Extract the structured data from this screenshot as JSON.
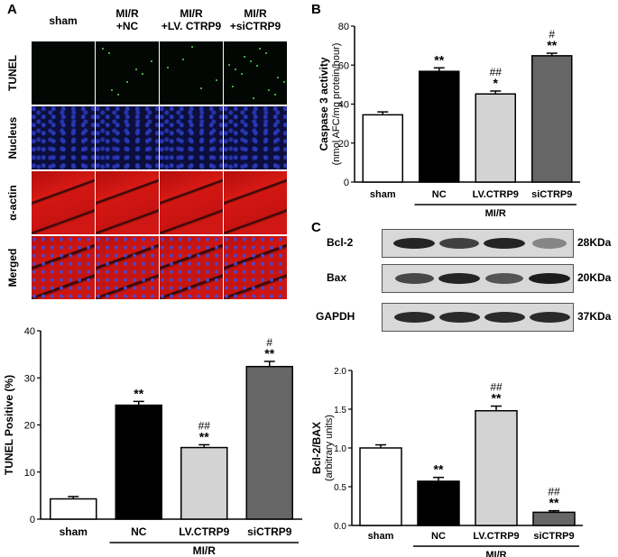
{
  "panels": {
    "a_letter": "A",
    "b_letter": "B",
    "c_letter": "C"
  },
  "micrograph": {
    "columns": [
      "sham",
      "MI/R\n+NC",
      "MI/R\n+LV. CTRP9",
      "MI/R\n+siCTRP9"
    ],
    "rows": [
      "TUNEL",
      "Nucleus",
      "α-actin",
      "Merged"
    ]
  },
  "blot": {
    "rows": [
      {
        "label": "Bcl-2",
        "kda": "28KDa",
        "intensity": [
          0.95,
          0.75,
          0.95,
          0.25
        ]
      },
      {
        "label": "Bax",
        "kda": "20KDa",
        "intensity": [
          0.7,
          0.95,
          0.6,
          1.0
        ]
      },
      {
        "label": "GAPDH",
        "kda": "37KDa",
        "intensity": [
          0.9,
          0.9,
          0.9,
          0.9
        ]
      }
    ]
  },
  "chart_data": [
    {
      "type": "bar",
      "id": "caspase",
      "title": "",
      "categories": [
        "sham",
        "NC",
        "LV.CTRP9",
        "siCTRP9"
      ],
      "values": [
        34.5,
        56.8,
        45.2,
        64.8
      ],
      "errors": [
        1.5,
        1.8,
        1.5,
        1.3
      ],
      "annotations": [
        [
          "",
          ""
        ],
        [
          "",
          "**"
        ],
        [
          "##",
          "*"
        ],
        [
          "#",
          "**"
        ]
      ],
      "ylabel": "Caspase 3 activity",
      "ylabel2": "(nmol AFC/mg protein/hour)",
      "ylim": [
        0,
        80
      ],
      "yticks": [
        0,
        20,
        40,
        60,
        80
      ],
      "group_label": "MI/R",
      "colors": [
        "#ffffff",
        "#000000",
        "#d3d3d3",
        "#666666"
      ]
    },
    {
      "type": "bar",
      "id": "tunel",
      "title": "",
      "categories": [
        "sham",
        "NC",
        "LV.CTRP9",
        "siCTRP9"
      ],
      "values": [
        4.3,
        24.2,
        15.2,
        32.4
      ],
      "errors": [
        0.5,
        0.8,
        0.6,
        1.1
      ],
      "annotations": [
        [
          "",
          ""
        ],
        [
          "",
          "**"
        ],
        [
          "##",
          "**"
        ],
        [
          "#",
          "**"
        ]
      ],
      "ylabel": "TUNEL Positive (%)",
      "ylabel2": "",
      "ylim": [
        0,
        40
      ],
      "yticks": [
        0,
        10,
        20,
        30,
        40
      ],
      "group_label": "MI/R",
      "colors": [
        "#ffffff",
        "#000000",
        "#d3d3d3",
        "#666666"
      ]
    },
    {
      "type": "bar",
      "id": "ratio",
      "title": "",
      "categories": [
        "sham",
        "NC",
        "LV.CTRP9",
        "siCTRP9"
      ],
      "values": [
        1.0,
        0.57,
        1.48,
        0.17
      ],
      "errors": [
        0.04,
        0.05,
        0.06,
        0.02
      ],
      "annotations": [
        [
          "",
          ""
        ],
        [
          "",
          "**"
        ],
        [
          "##",
          "**"
        ],
        [
          "##",
          "**"
        ]
      ],
      "ylabel": "Bcl-2/BAX",
      "ylabel2": "(arbitrary units)",
      "ylim": [
        0,
        2.0
      ],
      "yticks": [
        0.0,
        0.5,
        1.0,
        1.5,
        2.0
      ],
      "group_label": "MI/R",
      "colors": [
        "#ffffff",
        "#000000",
        "#d3d3d3",
        "#666666"
      ]
    }
  ]
}
